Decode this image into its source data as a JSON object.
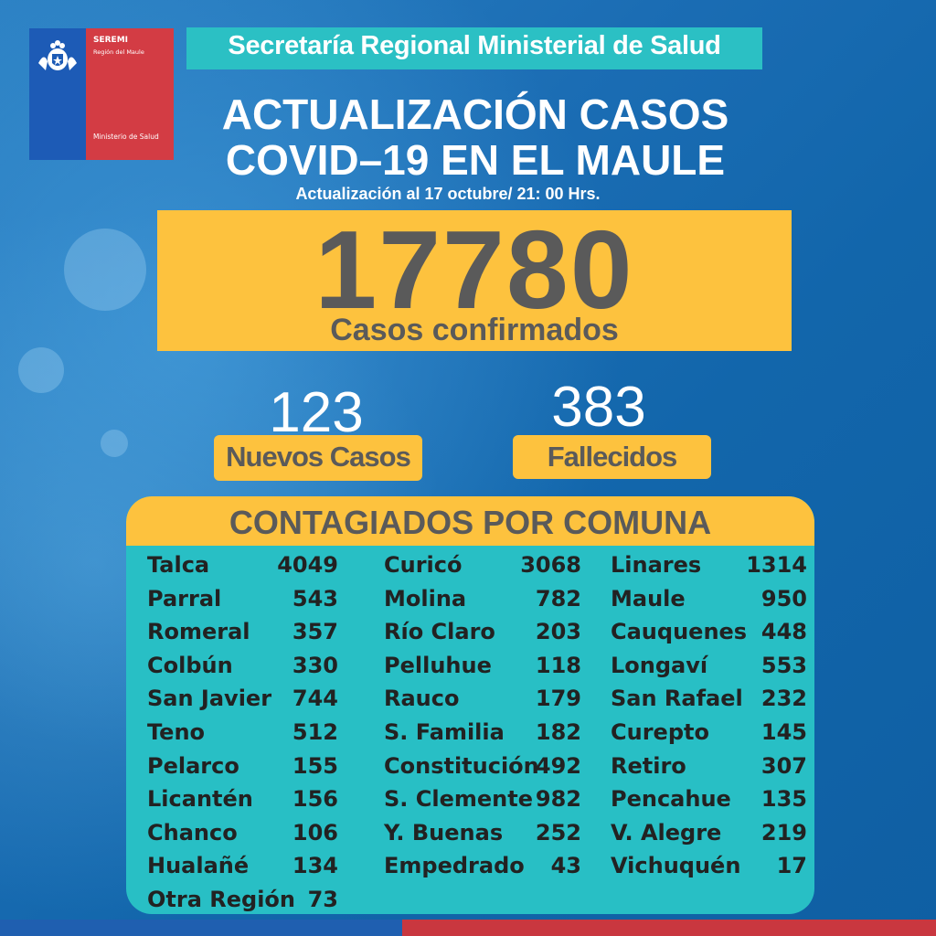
{
  "header": {
    "logo_title": "SEREMI",
    "logo_region": "Región del Maule",
    "logo_ministry": "Ministerio de Salud",
    "banner": "Secretaría Regional Ministerial de Salud",
    "title_line1": "ACTUALIZACIÓN CASOS",
    "title_line2": "COVID–19 EN EL MAULE",
    "subtitle": "Actualización al 17 octubre/ 21: 00 Hrs."
  },
  "totals": {
    "confirmed_value": "17780",
    "confirmed_label": "Casos confirmados",
    "new_value": "123",
    "new_label": "Nuevos Casos",
    "deaths_value": "383",
    "deaths_label": "Fallecidos"
  },
  "table": {
    "heading": "CONTAGIADOS POR COMUNA",
    "columns": [
      [
        {
          "name": "Talca",
          "value": "4049"
        },
        {
          "name": "Parral",
          "value": "543"
        },
        {
          "name": "Romeral",
          "value": "357"
        },
        {
          "name": "Colbún",
          "value": "330"
        },
        {
          "name": "San Javier",
          "value": "744"
        },
        {
          "name": "Teno",
          "value": "512"
        },
        {
          "name": "Pelarco",
          "value": "155"
        },
        {
          "name": "Licantén",
          "value": "156"
        },
        {
          "name": "Chanco",
          "value": "106"
        },
        {
          "name": "Hualañé",
          "value": "134"
        },
        {
          "name": "Otra Región",
          "value": "73"
        }
      ],
      [
        {
          "name": "Curicó",
          "value": "3068"
        },
        {
          "name": "Molina",
          "value": "782"
        },
        {
          "name": "Río Claro",
          "value": "203"
        },
        {
          "name": "Pelluhue",
          "value": "118"
        },
        {
          "name": "Rauco",
          "value": "179"
        },
        {
          "name": "S. Familia",
          "value": "182"
        },
        {
          "name": "Constitución",
          "value": "492"
        },
        {
          "name": "S. Clemente",
          "value": "982"
        },
        {
          "name": "Y. Buenas",
          "value": "252"
        },
        {
          "name": "Empedrado",
          "value": "43"
        }
      ],
      [
        {
          "name": "Linares",
          "value": "1314"
        },
        {
          "name": "Maule",
          "value": "950"
        },
        {
          "name": "Cauquenes",
          "value": "448"
        },
        {
          "name": "Longaví",
          "value": "553"
        },
        {
          "name": "San Rafael",
          "value": "232"
        },
        {
          "name": "Curepto",
          "value": "145"
        },
        {
          "name": "Retiro",
          "value": "307"
        },
        {
          "name": "Pencahue",
          "value": "135"
        },
        {
          "name": "V. Alegre",
          "value": "219"
        },
        {
          "name": "Vichuquén",
          "value": "17"
        }
      ]
    ]
  },
  "colors": {
    "background": "#1b6db4",
    "yellow": "#fdc23e",
    "teal": "#28bfc5",
    "gray_text": "#5a5a5a",
    "red": "#d33c44",
    "blue": "#1d5bb6"
  }
}
